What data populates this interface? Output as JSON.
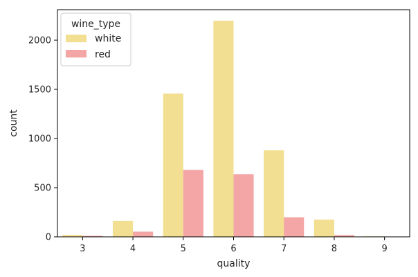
{
  "chart_data": {
    "type": "bar",
    "title": "",
    "xlabel": "quality",
    "ylabel": "count",
    "categories": [
      "3",
      "4",
      "5",
      "6",
      "7",
      "8",
      "9"
    ],
    "ylim": [
      0,
      2310
    ],
    "yticks": [
      0,
      500,
      1000,
      1500,
      2000
    ],
    "grid": false,
    "legend": {
      "title": "wine_type",
      "position": "top-left"
    },
    "series": [
      {
        "name": "white",
        "color": "#f2df91",
        "values": [
          20,
          163,
          1457,
          2198,
          880,
          175,
          5
        ]
      },
      {
        "name": "red",
        "color": "#f4a6a6",
        "values": [
          10,
          53,
          681,
          638,
          199,
          18,
          0
        ]
      }
    ]
  }
}
